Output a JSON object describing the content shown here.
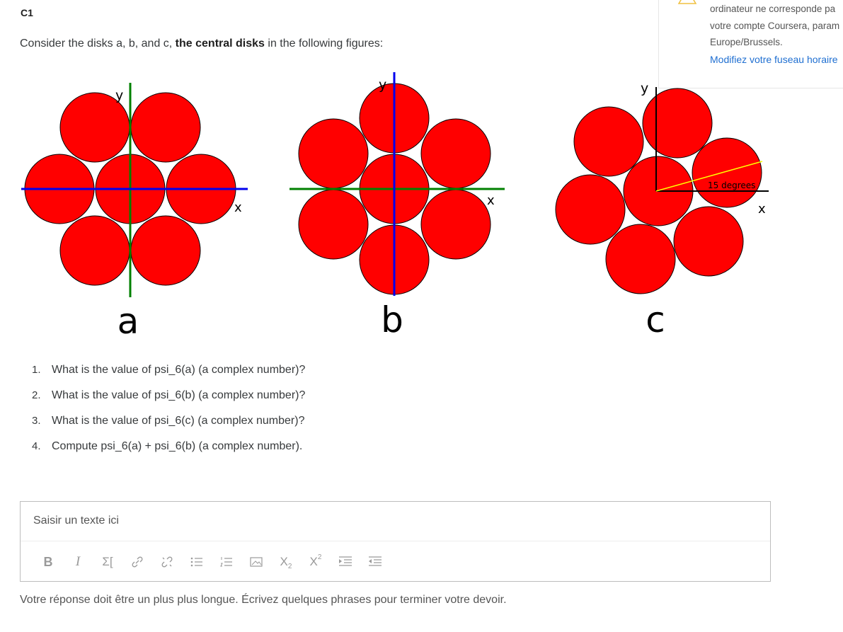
{
  "question": {
    "title": "C1",
    "intro_prefix": "Consider the disks a, b, and c, ",
    "intro_bold": "the central disks",
    "intro_suffix": " in the following figures:"
  },
  "notice": {
    "line1": "ordinateur ne corresponde pa",
    "line2": "votre compte Coursera, param",
    "line3": "Europe/Brussels.",
    "link": "Modifiez votre fuseau horaire"
  },
  "figures": {
    "disk_color": "#ff0000",
    "axis_colors": {
      "blue": "#0000ee",
      "green": "#008000",
      "black": "#000000",
      "yellow": "#ffff00"
    },
    "a": {
      "caption": "a",
      "x_label": "x",
      "y_label": "y"
    },
    "b": {
      "caption": "b",
      "x_label": "x",
      "y_label": "y"
    },
    "c": {
      "caption": "c",
      "x_label": "x",
      "y_label": "y",
      "angle_label": "15 degrees"
    }
  },
  "questions": [
    {
      "num": "1.",
      "text": "What is the value of psi_6(a) (a complex number)?"
    },
    {
      "num": "2.",
      "text": "What is the value of psi_6(b) (a complex number)?"
    },
    {
      "num": "3.",
      "text": "What is the value of psi_6(c) (a complex number)?"
    },
    {
      "num": "4.",
      "text": "Compute psi_6(a) + psi_6(b) (a complex number)."
    }
  ],
  "editor": {
    "placeholder": "Saisir un texte ici",
    "toolbar": [
      {
        "icon": "bold-icon",
        "glyph": "B"
      },
      {
        "icon": "italic-icon",
        "glyph": "I"
      },
      {
        "icon": "math-icon",
        "glyph": "Σ["
      },
      {
        "icon": "link-icon",
        "glyph": "🔗"
      },
      {
        "icon": "unlink-icon",
        "glyph": "⛓"
      },
      {
        "icon": "bullet-list-icon",
        "glyph": "☰"
      },
      {
        "icon": "numbered-list-icon",
        "glyph": "≡"
      },
      {
        "icon": "image-icon",
        "glyph": "▨"
      },
      {
        "icon": "subscript-icon",
        "glyph": "X₂"
      },
      {
        "icon": "superscript-icon",
        "glyph": "X²"
      },
      {
        "icon": "indent-icon",
        "glyph": "⇥"
      },
      {
        "icon": "outdent-icon",
        "glyph": "⇤"
      }
    ]
  },
  "hint": "Votre réponse doit être un plus plus longue. Écrivez quelques phrases pour terminer votre devoir."
}
